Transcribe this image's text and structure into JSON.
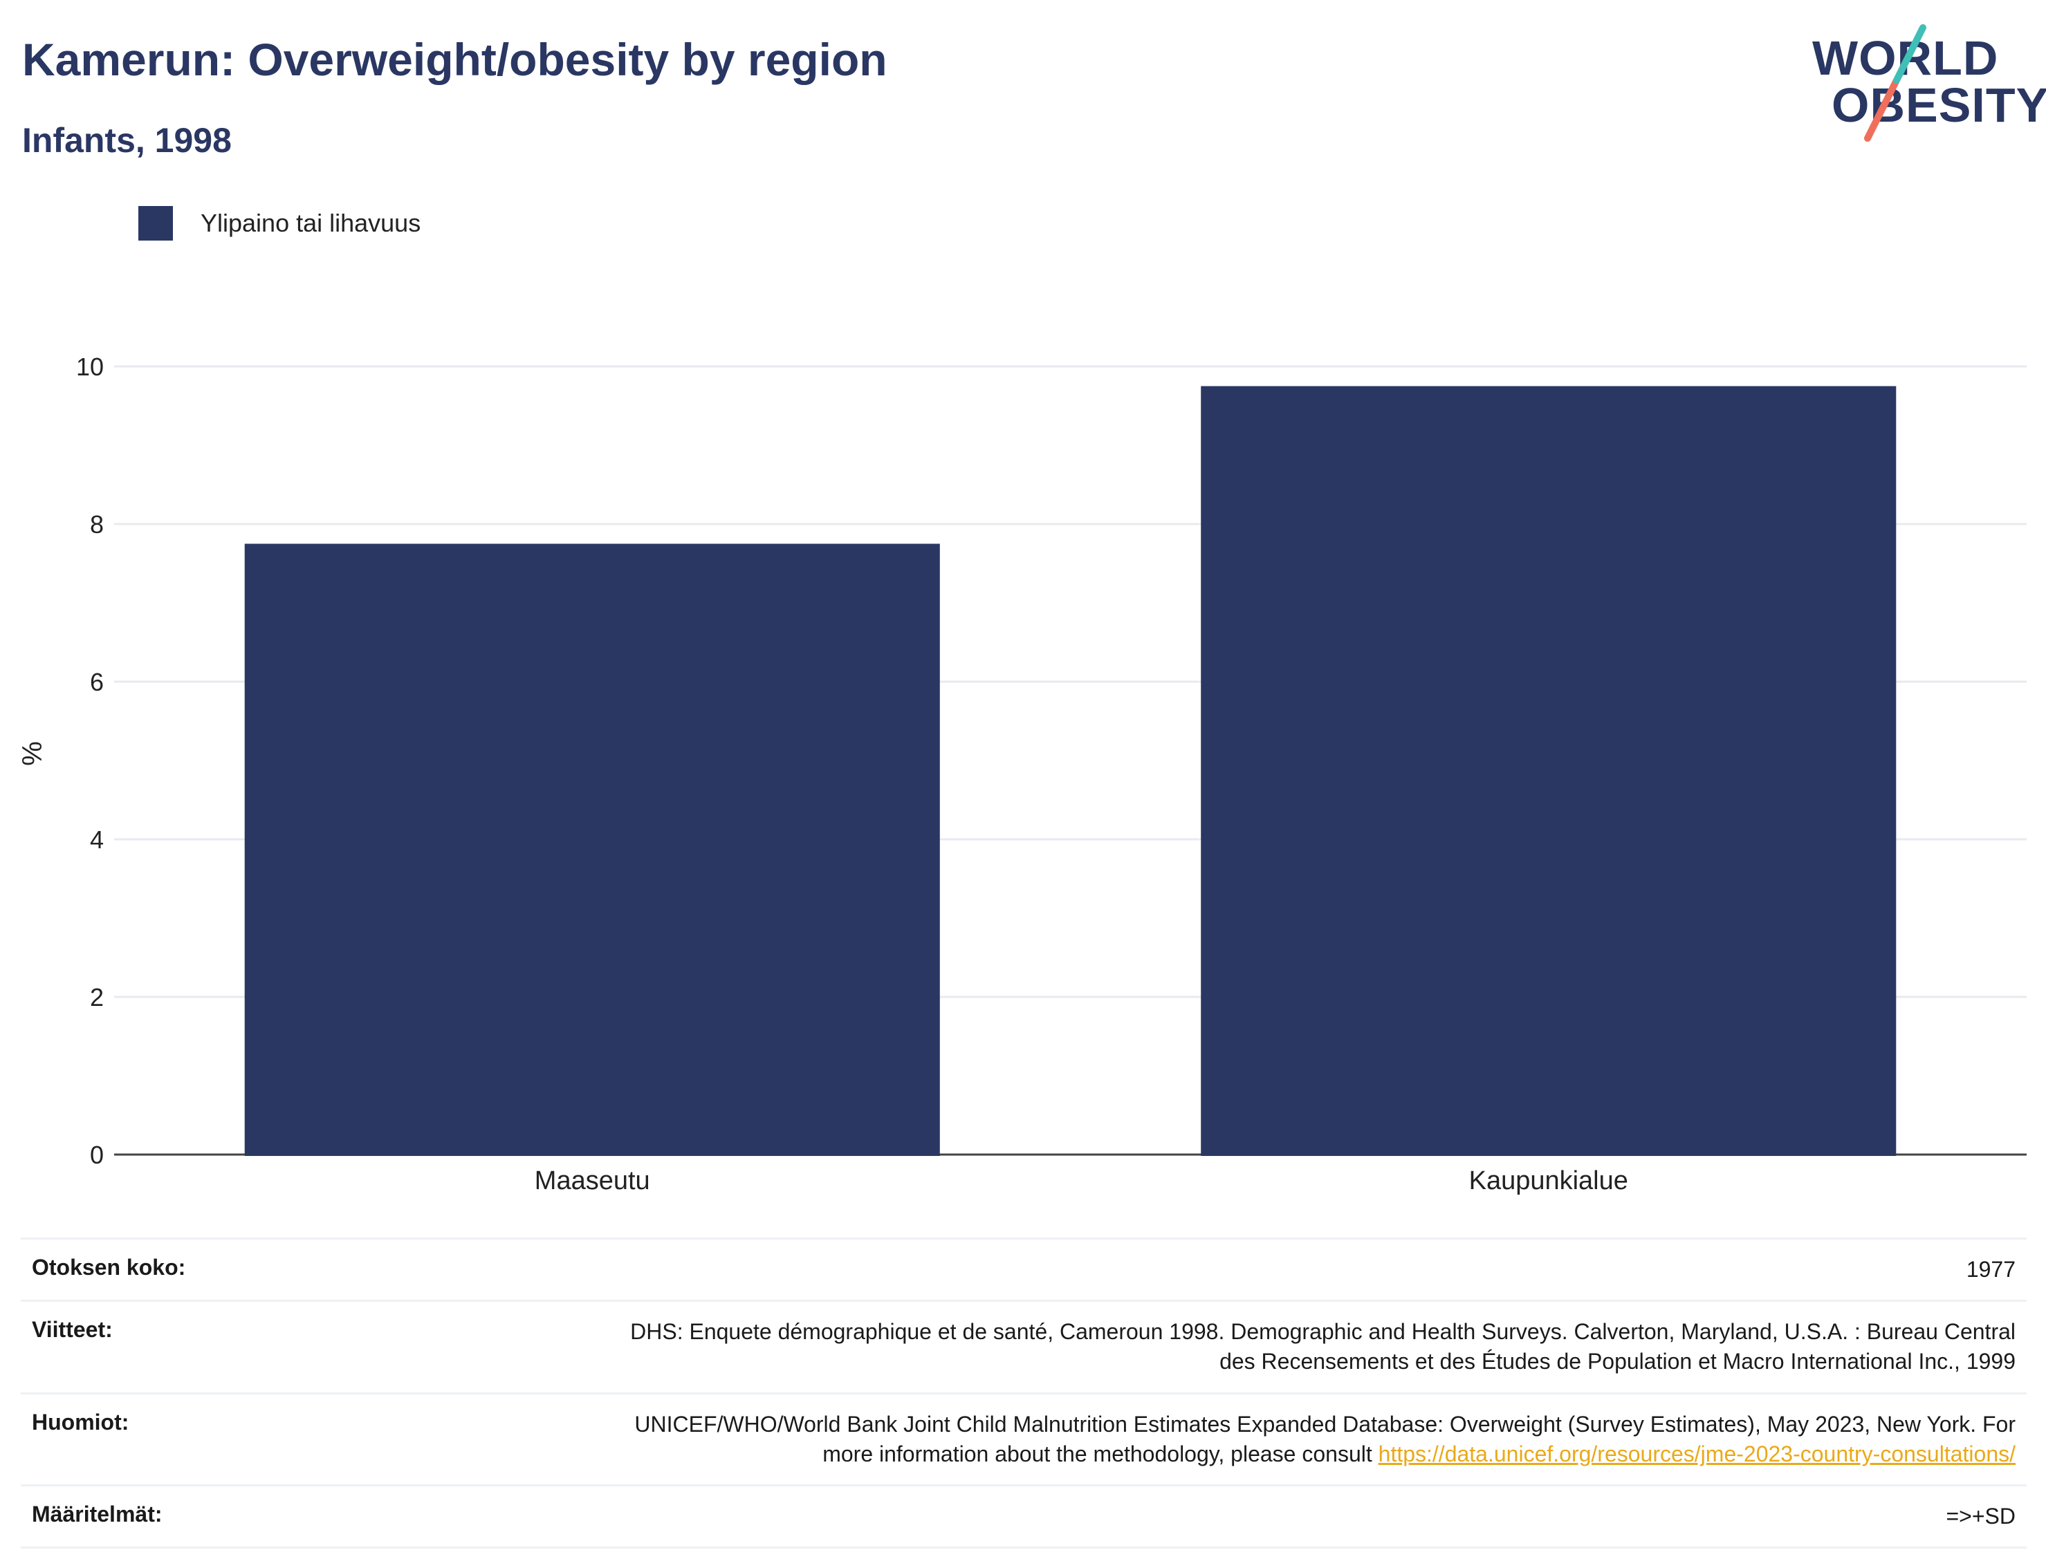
{
  "header": {
    "title": "Kamerun: Overweight/obesity by region",
    "subtitle": "Infants, 1998"
  },
  "logo": {
    "line1": "WORLD",
    "line2": "OBESITY"
  },
  "colors": {
    "bar": "#2a3763",
    "title": "#2a3763",
    "link": "#e9a91a"
  },
  "chart_data": {
    "type": "bar",
    "title": "Kamerun: Overweight/obesity by region",
    "subtitle": "Infants, 1998",
    "categories": [
      "Maaseutu",
      "Kaupunkialue"
    ],
    "series": [
      {
        "name": "Ylipaino tai lihavuus",
        "values": [
          7.75,
          9.75
        ]
      }
    ],
    "ylabel": "%",
    "ylim": [
      0,
      10
    ],
    "yticks": [
      0,
      2,
      4,
      6,
      8,
      10
    ],
    "grid": true,
    "legend": "top-left"
  },
  "info": {
    "sample_label": "Otoksen koko:",
    "sample_value": "1977",
    "refs_label": "Viitteet:",
    "refs_value": "DHS: Enquete démographique et de santé, Cameroun 1998. Demographic and Health Surveys. Calverton, Maryland, U.S.A. : Bureau Central des Recensements et des Études de Population et Macro International Inc., 1999",
    "notes_label": "Huomiot:",
    "notes_value": "UNICEF/WHO/World Bank Joint Child Malnutrition Estimates Expanded Database: Overweight (Survey Estimates), May 2023, New York. For more information about the methodology, please consult ",
    "notes_link": "https://data.unicef.org/resources/jme-2023-country-consultations/",
    "defs_label": "Määritelmät:",
    "defs_value": "=>+SD"
  }
}
